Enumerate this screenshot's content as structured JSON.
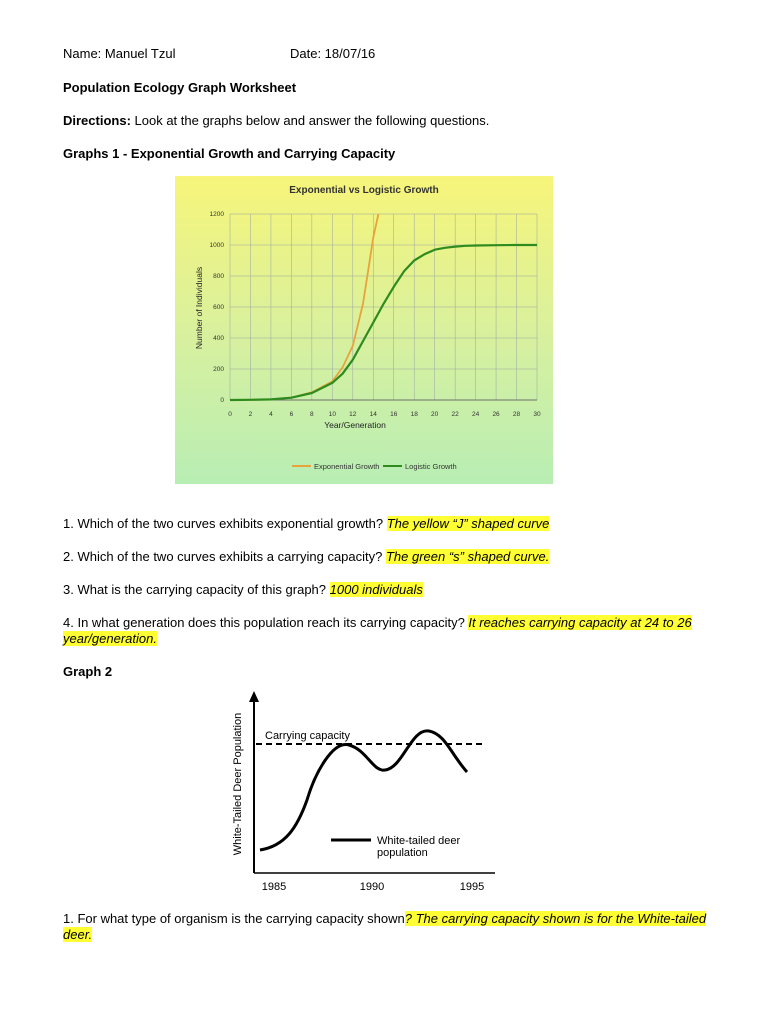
{
  "header": {
    "name": "Name: Manuel Tzul",
    "date": "Date: 18/07/16"
  },
  "title": "Population Ecology Graph Worksheet",
  "directions": {
    "label": "Directions:",
    "text": " Look at the graphs below and answer the following questions."
  },
  "section1_title": "Graphs 1 - Exponential Growth and Carrying Capacity",
  "section2_title": "Graph 2",
  "questions1": [
    {
      "q": "1. Which of the two curves exhibits exponential growth? ",
      "a": "The yellow “J” shaped curve"
    },
    {
      "q": "2. Which of the two curves exhibits a carrying capacity? ",
      "a": "The green “s” shaped curve."
    },
    {
      "q": "3. What is the carrying capacity of this graph?  ",
      "a": "1000 individuals"
    },
    {
      "q": "4. In what generation does this population reach its carrying capacity? ",
      "a": "It reaches carrying capacity at 24 to 26 year/generation."
    }
  ],
  "questions2": [
    {
      "q": "1. For what type of organism is the carrying capacity shown",
      "a": "? The carrying capacity shown is for the White-tailed deer."
    }
  ],
  "chart_data": [
    {
      "type": "line",
      "title": "Exponential vs Logistic Growth",
      "xlabel": "Year/Generation",
      "ylabel": "Number of Individuals",
      "xlim": [
        0,
        30
      ],
      "ylim": [
        0,
        1200
      ],
      "x_ticks": [
        0,
        2,
        4,
        6,
        8,
        10,
        12,
        14,
        16,
        18,
        20,
        22,
        24,
        26,
        28,
        30
      ],
      "y_ticks": [
        0,
        200,
        400,
        600,
        800,
        1000,
        1200
      ],
      "grid": true,
      "legend_position": "bottom",
      "series": [
        {
          "name": "Exponential Growth",
          "color": "#e8a33a",
          "x": [
            0,
            2,
            4,
            6,
            8,
            10,
            11,
            12,
            13,
            14,
            14.5
          ],
          "y": [
            0,
            1,
            4,
            15,
            50,
            120,
            210,
            350,
            620,
            1050,
            1200
          ]
        },
        {
          "name": "Logistic Growth",
          "color": "#2e8b1e",
          "x": [
            0,
            2,
            4,
            6,
            8,
            10,
            11,
            12,
            13,
            14,
            15,
            16,
            17,
            18,
            19,
            20,
            21,
            22,
            23,
            24,
            26,
            28,
            30
          ],
          "y": [
            0,
            1,
            4,
            15,
            45,
            110,
            170,
            260,
            380,
            500,
            620,
            730,
            830,
            900,
            940,
            970,
            982,
            990,
            995,
            997,
            999,
            1000,
            1000
          ]
        }
      ]
    },
    {
      "type": "line",
      "ylabel": "White-Tailed Deer Population",
      "x_ticks": [
        "1985",
        "1990",
        "1995"
      ],
      "annotation": "Carrying capacity",
      "legend": "White-tailed deer population",
      "legend_lines": [
        "White-tailed deer",
        "population"
      ]
    }
  ]
}
